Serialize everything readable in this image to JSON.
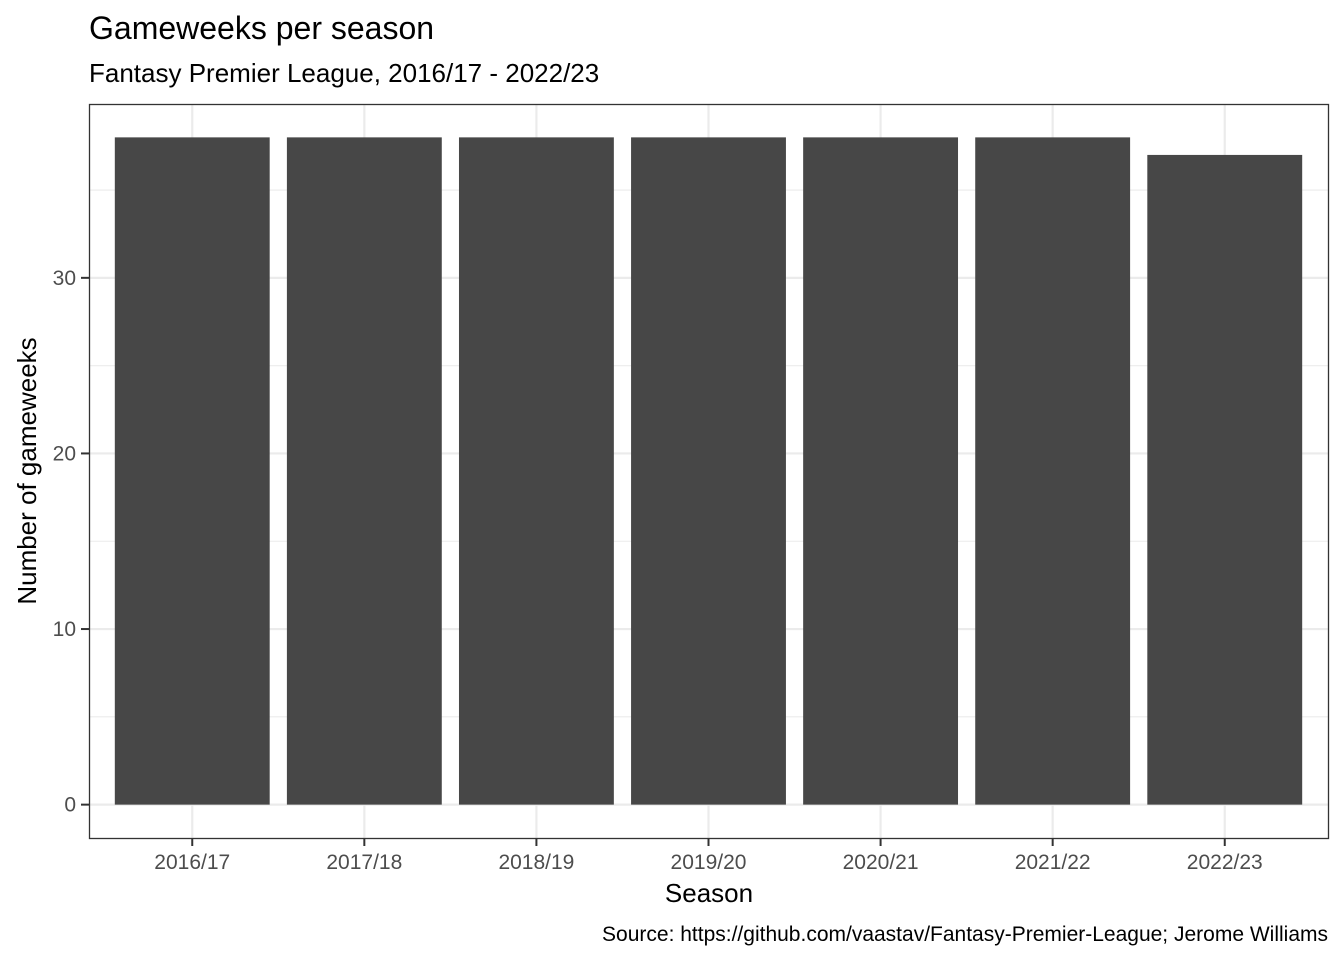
{
  "chart_data": {
    "type": "bar",
    "title": "Gameweeks per season",
    "subtitle": "Fantasy Premier League, 2016/17 - 2022/23",
    "xlabel": "Season",
    "ylabel": "Number of gameweeks",
    "caption": "Source: https://github.com/vaastav/Fantasy-Premier-League; Jerome Williams",
    "categories": [
      "2016/17",
      "2017/18",
      "2018/19",
      "2019/20",
      "2020/21",
      "2021/22",
      "2022/23"
    ],
    "values": [
      38,
      38,
      38,
      38,
      38,
      38,
      37
    ],
    "ylim": [
      -1.9,
      39.9
    ],
    "yticks": [
      0,
      10,
      20,
      30
    ],
    "grid": true,
    "bar_color": "#474747",
    "grid_color": "#ebebeb",
    "panel_border_color": "#333333"
  }
}
